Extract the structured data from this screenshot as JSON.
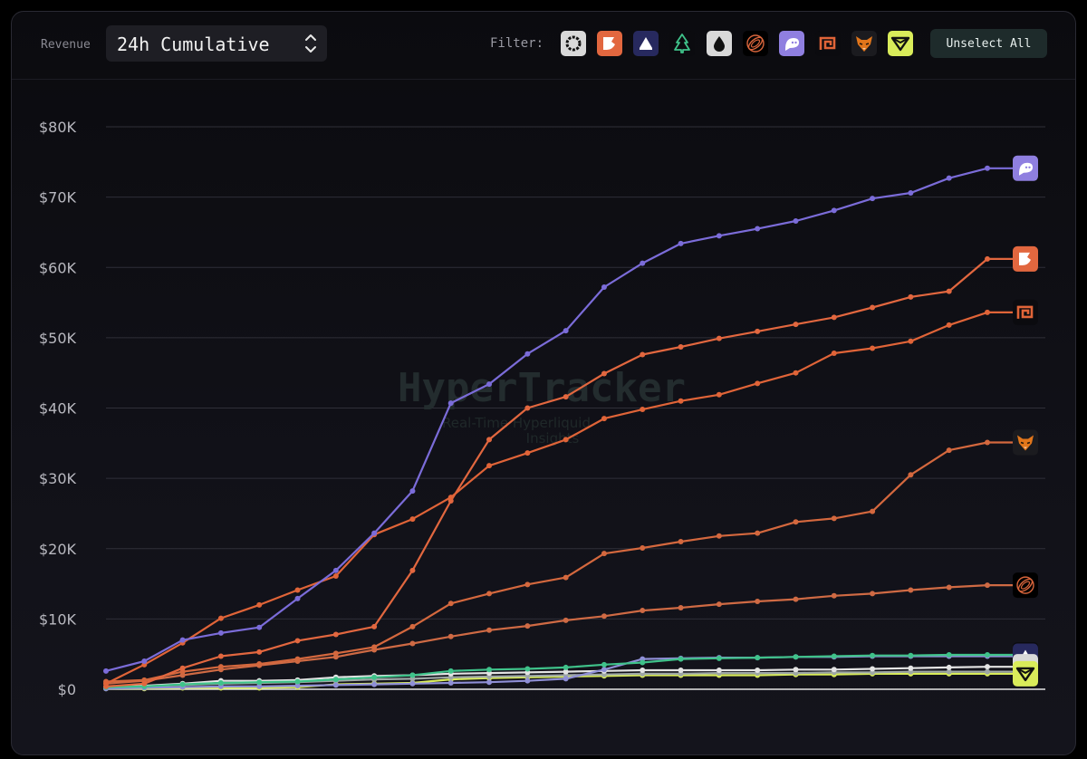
{
  "header": {
    "metric_label": "Revenue",
    "range_select": {
      "value": "24h Cumulative"
    },
    "filter_label": "Filter:",
    "unselect_label": "Unselect All",
    "filters": [
      {
        "icon": "circle-ring-icon",
        "bg": "#d9d9d9",
        "fg": "#111111"
      },
      {
        "icon": "flag-icon",
        "bg": "#e2673f",
        "fg": "#ffffff"
      },
      {
        "icon": "triangle-icon",
        "bg": "#27295e",
        "fg": "#ffffff"
      },
      {
        "icon": "tree-icon",
        "bg": "#0b0b0f",
        "fg": "#3fc28a"
      },
      {
        "icon": "drop-icon",
        "bg": "#d9d9d9",
        "fg": "#111111"
      },
      {
        "icon": "swirl-icon",
        "bg": "#000000",
        "fg": "#d7643b"
      },
      {
        "icon": "ghost-icon",
        "bg": "#8f7fe0",
        "fg": "#ffffff"
      },
      {
        "icon": "spiral-square-icon",
        "bg": "#0b0b0f",
        "fg": "#e06438"
      },
      {
        "icon": "fox-icon",
        "bg": "#1b1b1f",
        "fg": "#e2761b"
      },
      {
        "icon": "cube-icon",
        "bg": "#d9ec5a",
        "fg": "#111111"
      }
    ]
  },
  "watermark": {
    "title": "HyperTracker",
    "subtitle_line1": "Real-Time Hyperliquid",
    "subtitle_line2": "Insights",
    "color": "#232c2e"
  },
  "chart_data": {
    "type": "line",
    "title": "",
    "xlabel": "",
    "ylabel": "Revenue",
    "ylim": [
      0,
      80000
    ],
    "yticks": [
      0,
      10000,
      20000,
      30000,
      40000,
      50000,
      60000,
      70000,
      80000
    ],
    "ytick_labels": [
      "$0",
      "$10K",
      "$20K",
      "$30K",
      "$40K",
      "$50K",
      "$60K",
      "$70K",
      "$80K"
    ],
    "x_points": 24,
    "grid": true,
    "legend": "end-of-line icons",
    "series": [
      {
        "icon": "ghost-icon",
        "color": "#7b6cd9",
        "badge_bg": "#8f7fe0",
        "values": [
          2600,
          4000,
          7000,
          8000,
          8800,
          12900,
          16900,
          22200,
          28200,
          40700,
          43400,
          47700,
          51000,
          57200,
          60600,
          63400,
          64500,
          65500,
          66600,
          68100,
          69800,
          70600,
          72700,
          74100,
          74100
        ]
      },
      {
        "icon": "spiral-square-icon",
        "color": "#e06438",
        "badge_bg": "#0b0b0f",
        "values": [
          800,
          3500,
          6600,
          10100,
          12000,
          14100,
          16100,
          22000,
          24200,
          27300,
          31800,
          33600,
          35500,
          38500,
          39800,
          41000,
          41900,
          43500,
          45000,
          47800,
          48500,
          49500,
          51800,
          53600,
          53600
        ]
      },
      {
        "icon": "flag-icon",
        "color": "#e2673f",
        "badge_bg": "#e2673f",
        "values": [
          400,
          800,
          3000,
          4700,
          5300,
          6900,
          7800,
          8900,
          16900,
          26800,
          35500,
          40000,
          41600,
          44900,
          47600,
          48700,
          49900,
          50900,
          51900,
          52900,
          54300,
          55800,
          56600,
          61200,
          61200
        ]
      },
      {
        "icon": "fox-icon",
        "color": "#d4683e",
        "badge_bg": "#1b1b1f",
        "values": [
          1100,
          1300,
          2500,
          3200,
          3600,
          4300,
          5100,
          6000,
          8900,
          12200,
          13600,
          14900,
          15900,
          19300,
          20100,
          21000,
          21800,
          22200,
          23800,
          24300,
          25300,
          30500,
          34000,
          35100,
          35100
        ]
      },
      {
        "icon": "swirl-icon",
        "color": "#cf6a44",
        "badge_bg": "#000000",
        "values": [
          800,
          1200,
          2000,
          2800,
          3400,
          4000,
          4600,
          5600,
          6500,
          7500,
          8400,
          9000,
          9800,
          10400,
          11200,
          11600,
          12100,
          12500,
          12800,
          13300,
          13600,
          14100,
          14500,
          14800,
          14800
        ]
      },
      {
        "icon": "tree-icon",
        "color": "#3fc28a",
        "badge_bg": "#0b0b0f",
        "values": [
          300,
          400,
          700,
          900,
          1000,
          1100,
          1400,
          1700,
          2000,
          2600,
          2800,
          2900,
          3100,
          3500,
          3800,
          4300,
          4400,
          4500,
          4600,
          4700,
          4800,
          4800,
          4900,
          4900,
          4900
        ]
      },
      {
        "icon": "triangle-icon",
        "color": "#8f8fd6",
        "badge_bg": "#27295e",
        "values": [
          100,
          200,
          300,
          400,
          400,
          500,
          600,
          700,
          800,
          900,
          1000,
          1200,
          1500,
          2800,
          4300,
          4400,
          4500,
          4500,
          4600,
          4600,
          4700,
          4700,
          4700,
          4700,
          4700
        ]
      },
      {
        "icon": "drop-icon",
        "color": "#e4e4e4",
        "badge_bg": "#d9d9d9",
        "values": [
          300,
          500,
          800,
          1200,
          1200,
          1300,
          1700,
          1900,
          2000,
          2200,
          2300,
          2400,
          2500,
          2600,
          2700,
          2700,
          2700,
          2700,
          2800,
          2800,
          2900,
          3000,
          3100,
          3200,
          3200
        ]
      },
      {
        "icon": "circle-ring-icon",
        "color": "#9ea7a6",
        "badge_bg": "#d9d9d9",
        "values": [
          200,
          400,
          600,
          800,
          900,
          1000,
          1200,
          1400,
          1500,
          1700,
          1800,
          1900,
          2000,
          2100,
          2200,
          2200,
          2300,
          2300,
          2300,
          2400,
          2400,
          2500,
          2500,
          2500,
          2500
        ]
      },
      {
        "icon": "cube-icon",
        "color": "#d9ec5a",
        "badge_bg": "#d9ec5a",
        "values": [
          100,
          100,
          200,
          200,
          200,
          300,
          700,
          800,
          900,
          1400,
          1600,
          1700,
          1800,
          1900,
          2000,
          2000,
          2000,
          2000,
          2100,
          2100,
          2200,
          2200,
          2200,
          2200,
          2200
        ]
      }
    ]
  }
}
